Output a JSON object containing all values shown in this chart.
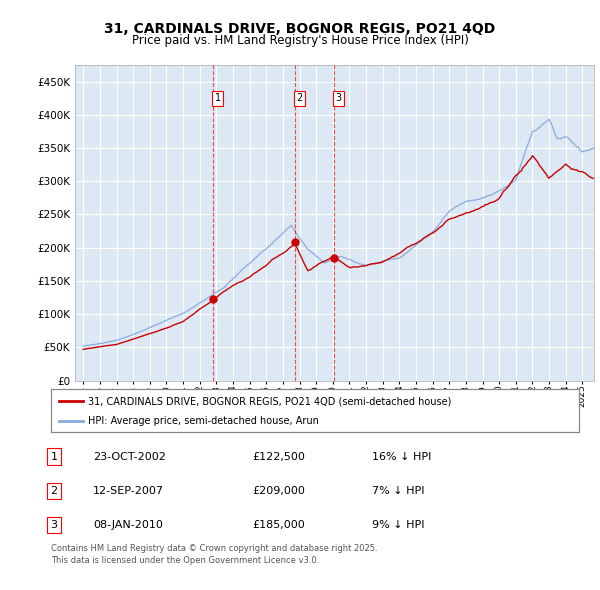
{
  "title1": "31, CARDINALS DRIVE, BOGNOR REGIS, PO21 4QD",
  "title2": "Price paid vs. HM Land Registry's House Price Index (HPI)",
  "plot_bg": "#dce9f5",
  "grid_color": "#ffffff",
  "sale_dates": [
    2002.81,
    2007.71,
    2010.04
  ],
  "sale_prices": [
    122500,
    209000,
    185000
  ],
  "sale_labels": [
    "1",
    "2",
    "3"
  ],
  "legend_line1": "31, CARDINALS DRIVE, BOGNOR REGIS, PO21 4QD (semi-detached house)",
  "legend_line2": "HPI: Average price, semi-detached house, Arun",
  "table_rows": [
    [
      "1",
      "23-OCT-2002",
      "£122,500",
      "16% ↓ HPI"
    ],
    [
      "2",
      "12-SEP-2007",
      "£209,000",
      "7% ↓ HPI"
    ],
    [
      "3",
      "08-JAN-2010",
      "£185,000",
      "9% ↓ HPI"
    ]
  ],
  "footnote1": "Contains HM Land Registry data © Crown copyright and database right 2025.",
  "footnote2": "This data is licensed under the Open Government Licence v3.0.",
  "ylim": [
    0,
    475000
  ],
  "xlim_start": 1994.5,
  "xlim_end": 2025.7,
  "red_color": "#cc0000",
  "blue_color": "#88aadd",
  "title_fontsize": 10,
  "subtitle_fontsize": 8.5
}
